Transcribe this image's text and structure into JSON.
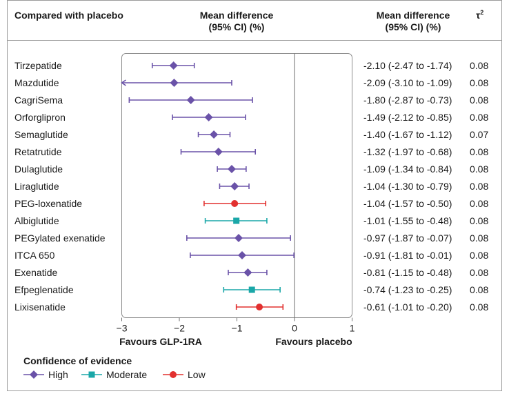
{
  "header": {
    "comparison_label": "Compared with placebo",
    "plot_header": [
      "Mean difference",
      "(95% CI) (%)"
    ],
    "ci_header": [
      "Mean difference",
      "(95% CI) (%)"
    ],
    "tau_header": "τ",
    "tau_superscript": "2"
  },
  "axis_labels": {
    "left": "Favours GLP-1RA",
    "right": "Favours placebo"
  },
  "legend": {
    "title": "Confidence of evidence",
    "items": [
      {
        "label": "High",
        "color": "#6a52a8",
        "marker": "diamond"
      },
      {
        "label": "Moderate",
        "color": "#1aa7a8",
        "marker": "square"
      },
      {
        "label": "Low",
        "color": "#e2302f",
        "marker": "circle"
      }
    ]
  },
  "chart_data": {
    "type": "forest",
    "xlim": [
      -3,
      1
    ],
    "xticks": [
      -3,
      -2,
      -1,
      0,
      1
    ],
    "tick_labels": [
      "−3",
      "−2",
      "−1",
      "0",
      "1"
    ],
    "reference_line": 0,
    "rows": [
      {
        "name": "Tirzepatide",
        "estimate": -2.1,
        "low": -2.47,
        "high": -1.74,
        "ci_text": "-2.10 (-2.47 to -1.74)",
        "tau2": "0.08",
        "confidence": "High"
      },
      {
        "name": "Mazdutide",
        "estimate": -2.09,
        "low": -3.1,
        "high": -1.09,
        "ci_text": "-2.09 (-3.10 to -1.09)",
        "tau2": "0.08",
        "confidence": "High"
      },
      {
        "name": "CagriSema",
        "estimate": -1.8,
        "low": -2.87,
        "high": -0.73,
        "ci_text": "-1.80 (-2.87 to -0.73)",
        "tau2": "0.08",
        "confidence": "High"
      },
      {
        "name": "Orforglipron",
        "estimate": -1.49,
        "low": -2.12,
        "high": -0.85,
        "ci_text": "-1.49 (-2.12 to -0.85)",
        "tau2": "0.08",
        "confidence": "High"
      },
      {
        "name": "Semaglutide",
        "estimate": -1.4,
        "low": -1.67,
        "high": -1.12,
        "ci_text": "-1.40 (-1.67 to -1.12)",
        "tau2": "0.07",
        "confidence": "High"
      },
      {
        "name": "Retatrutide",
        "estimate": -1.32,
        "low": -1.97,
        "high": -0.68,
        "ci_text": "-1.32 (-1.97 to -0.68)",
        "tau2": "0.08",
        "confidence": "High"
      },
      {
        "name": "Dulaglutide",
        "estimate": -1.09,
        "low": -1.34,
        "high": -0.84,
        "ci_text": "-1.09 (-1.34 to -0.84)",
        "tau2": "0.08",
        "confidence": "High"
      },
      {
        "name": "Liraglutide",
        "estimate": -1.04,
        "low": -1.3,
        "high": -0.79,
        "ci_text": "-1.04 (-1.30 to -0.79)",
        "tau2": "0.08",
        "confidence": "High"
      },
      {
        "name": "PEG-loxenatide",
        "estimate": -1.04,
        "low": -1.57,
        "high": -0.5,
        "ci_text": "-1.04 (-1.57 to -0.50)",
        "tau2": "0.08",
        "confidence": "Low"
      },
      {
        "name": "Albiglutide",
        "estimate": -1.01,
        "low": -1.55,
        "high": -0.48,
        "ci_text": "-1.01 (-1.55 to -0.48)",
        "tau2": "0.08",
        "confidence": "Moderate"
      },
      {
        "name": "PEGylated exenatide",
        "estimate": -0.97,
        "low": -1.87,
        "high": -0.07,
        "ci_text": "-0.97 (-1.87 to -0.07)",
        "tau2": "0.08",
        "confidence": "High"
      },
      {
        "name": "ITCA 650",
        "estimate": -0.91,
        "low": -1.81,
        "high": -0.01,
        "ci_text": "-0.91 (-1.81 to -0.01)",
        "tau2": "0.08",
        "confidence": "High"
      },
      {
        "name": "Exenatide",
        "estimate": -0.81,
        "low": -1.15,
        "high": -0.48,
        "ci_text": "-0.81 (-1.15 to -0.48)",
        "tau2": "0.08",
        "confidence": "High"
      },
      {
        "name": "Efpeglenatide",
        "estimate": -0.74,
        "low": -1.23,
        "high": -0.25,
        "ci_text": "-0.74 (-1.23 to -0.25)",
        "tau2": "0.08",
        "confidence": "Moderate"
      },
      {
        "name": "Lixisenatide",
        "estimate": -0.61,
        "low": -1.01,
        "high": -0.2,
        "ci_text": "-0.61 (-1.01 to -0.20)",
        "tau2": "0.08",
        "confidence": "Low"
      }
    ]
  }
}
